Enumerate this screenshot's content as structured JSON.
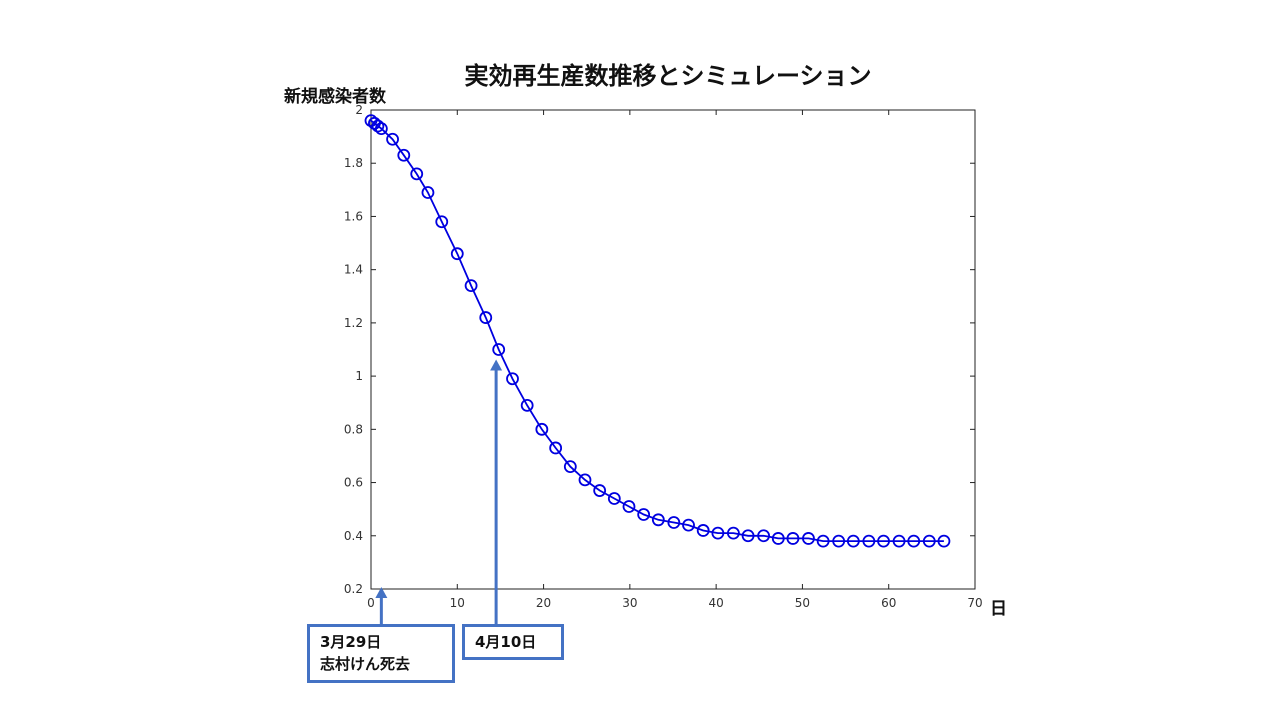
{
  "chart_data": {
    "type": "line",
    "title": "実効再生産数推移とシミュレーション",
    "ylabel": "新規感染者数",
    "xlabel": "日",
    "xlim": [
      0,
      70
    ],
    "ylim": [
      0.2,
      2
    ],
    "xticks": [
      0,
      10,
      20,
      30,
      40,
      50,
      60,
      70
    ],
    "xtick_labels": [
      "0",
      "10",
      "20",
      "30",
      "40",
      "50",
      "60",
      "70"
    ],
    "yticks": [
      0.2,
      0.4,
      0.6,
      0.8,
      1,
      1.2,
      1.4,
      1.6,
      1.8,
      2
    ],
    "ytick_labels": [
      "0.2",
      "0.4",
      "0.6",
      "0.8",
      "1",
      "1.2",
      "1.4",
      "1.6",
      "1.8",
      "2"
    ],
    "grid": false,
    "series": [
      {
        "color": "#0000E0",
        "marker": "circle",
        "x": [
          0,
          0.4,
          0.8,
          1.2,
          2.5,
          3.8,
          5.3,
          6.6,
          8.2,
          10,
          11.6,
          13.3,
          14.8,
          16.4,
          18.1,
          19.8,
          21.4,
          23.1,
          24.8,
          26.5,
          28.2,
          29.9,
          31.6,
          33.3,
          35.1,
          36.8,
          38.5,
          40.2,
          42,
          43.7,
          45.5,
          47.2,
          48.9,
          50.7,
          52.4,
          54.2,
          55.9,
          57.7,
          59.4,
          61.2,
          62.9,
          64.7,
          66.4
        ],
        "y": [
          1.96,
          1.95,
          1.94,
          1.93,
          1.89,
          1.83,
          1.76,
          1.69,
          1.58,
          1.46,
          1.34,
          1.22,
          1.1,
          0.99,
          0.89,
          0.8,
          0.73,
          0.66,
          0.61,
          0.57,
          0.54,
          0.51,
          0.48,
          0.46,
          0.45,
          0.44,
          0.42,
          0.41,
          0.41,
          0.4,
          0.4,
          0.39,
          0.39,
          0.39,
          0.38,
          0.38,
          0.38,
          0.38,
          0.38,
          0.38,
          0.38,
          0.38,
          0.38
        ]
      }
    ],
    "annotations": [
      {
        "lines": [
          "3月29日",
          "志村けん死去"
        ],
        "x": 1.2
      },
      {
        "lines": [
          "4月10日"
        ],
        "x": 14.5,
        "y": 1.1
      }
    ],
    "annotation_color": "#4472C4"
  }
}
